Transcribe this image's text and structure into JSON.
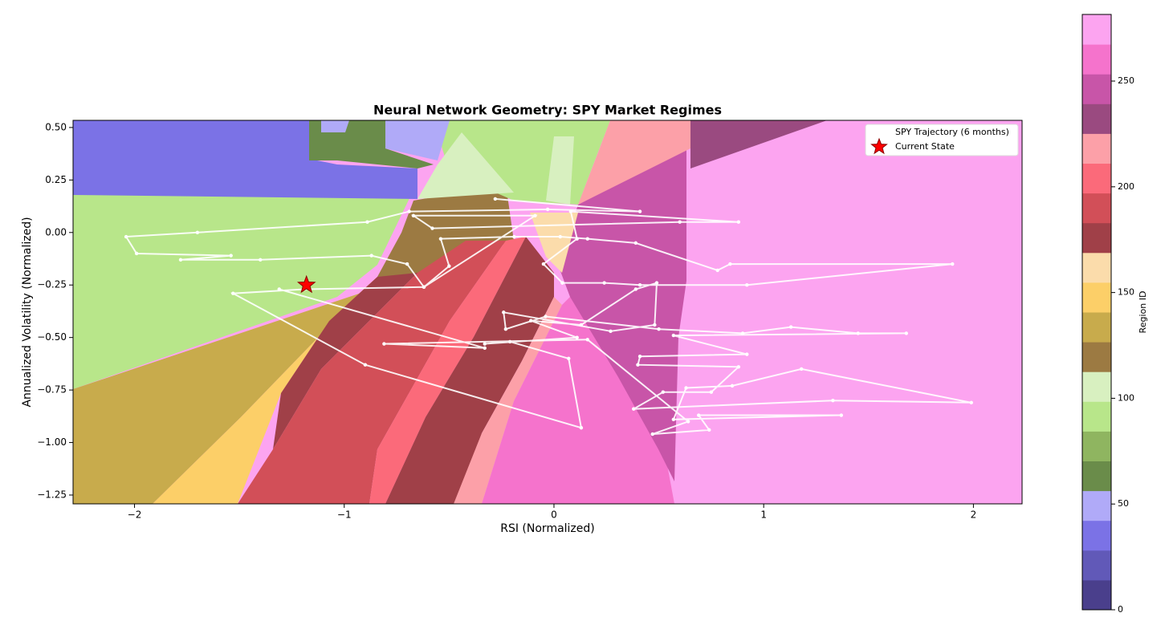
{
  "chart_data": {
    "type": "line",
    "title": "Neural Network Geometry: SPY Market Regimes",
    "xlabel": "RSI (Normalized)",
    "ylabel": "Annualized Volatility (Normalized)",
    "xlim": [
      -2.293,
      2.232
    ],
    "ylim": [
      -1.292,
      0.534
    ],
    "xticks": [
      {
        "value": -2,
        "label": "−2"
      },
      {
        "value": -1,
        "label": "−1"
      },
      0,
      1,
      2
    ],
    "yticks": [
      {
        "value": 0.5,
        "label": "0.50"
      },
      {
        "value": 0.25,
        "label": "0.25"
      },
      {
        "value": 0,
        "label": "0.00"
      },
      {
        "value": -0.25,
        "label": "−0.25"
      },
      {
        "value": -0.5,
        "label": "−0.50"
      },
      {
        "value": -0.75,
        "label": "−0.75"
      },
      {
        "value": -1,
        "label": "−1.00"
      },
      {
        "value": -1.25,
        "label": "−1.25"
      }
    ],
    "legend": "upper right",
    "series": [
      {
        "name": "SPY Trajectory (6 months)",
        "color": "#ffffff",
        "x": [
          -0.28,
          0.41,
          -0.03,
          -0.69,
          -0.89,
          -1.7,
          -2.04,
          -1.99,
          -1.54,
          -1.78,
          -1.4,
          -0.87,
          -0.7,
          -0.62,
          -0.5,
          -0.54,
          -0.19,
          0.03,
          0.16,
          0.39,
          0.78,
          0.84,
          1.9,
          0.92,
          0.41,
          0.24,
          0.04,
          -0.05,
          0.11,
          0.08,
          0.88,
          0.6,
          -0.58,
          -0.67,
          -0.09,
          -0.62,
          -1.19,
          -1.53,
          -0.9,
          0.13,
          0.07,
          -0.21,
          -0.33,
          0.11,
          -0.11,
          0.13,
          0.39,
          0.49,
          0.48,
          0.27,
          -0.24,
          -0.23,
          -0.04,
          0.5,
          0.9,
          1.13,
          1.45,
          1.68,
          0.57,
          0.92,
          0.41,
          0.4,
          0.88,
          0.75,
          0.52,
          0.38,
          1.33,
          1.99,
          1.18,
          0.85,
          0.63,
          0.57,
          1.37,
          0.69,
          0.74,
          0.47,
          0.64,
          0.16,
          -0.81,
          -0.33,
          -1.31
        ],
        "values": [
          0.16,
          0.1,
          0.11,
          0.1,
          0.05,
          0.0,
          -0.02,
          -0.1,
          -0.11,
          -0.13,
          -0.13,
          -0.11,
          -0.15,
          -0.26,
          -0.16,
          -0.03,
          -0.02,
          -0.02,
          -0.03,
          -0.05,
          -0.18,
          -0.15,
          -0.15,
          -0.25,
          -0.25,
          -0.24,
          -0.24,
          -0.15,
          -0.03,
          0.1,
          0.05,
          0.05,
          0.02,
          0.08,
          0.08,
          -0.26,
          -0.27,
          -0.29,
          -0.63,
          -0.93,
          -0.6,
          -0.52,
          -0.53,
          -0.5,
          -0.42,
          -0.44,
          -0.27,
          -0.24,
          -0.44,
          -0.47,
          -0.38,
          -0.46,
          -0.4,
          -0.46,
          -0.48,
          -0.45,
          -0.48,
          -0.48,
          -0.49,
          -0.58,
          -0.59,
          -0.63,
          -0.64,
          -0.76,
          -0.76,
          -0.84,
          -0.8,
          -0.81,
          -0.65,
          -0.73,
          -0.74,
          -0.89,
          -0.87,
          -0.87,
          -0.94,
          -0.96,
          -0.9,
          -0.51,
          -0.53,
          -0.55,
          -0.27
        ]
      }
    ],
    "current_state": {
      "name": "Current State",
      "color": "#ff0000",
      "x": -1.18,
      "y": -0.25
    },
    "colorbar": {
      "label": "Region ID",
      "lim": [
        0,
        281.5
      ],
      "ticks": [
        0,
        50,
        100,
        150,
        200,
        250
      ],
      "colors": [
        "#4a3f8c",
        "#6159b8",
        "#7b72e6",
        "#b0aaf8",
        "#6a8c4a",
        "#8fb560",
        "#b8e68a",
        "#d8f0c0",
        "#9c7a42",
        "#c8ab4c",
        "#fccf68",
        "#fbdcab",
        "#a04048",
        "#d24f58",
        "#fb6a7a",
        "#fca0a8",
        "#9a4a80",
        "#c855a8",
        "#f573cc",
        "#fca4f0"
      ]
    }
  }
}
